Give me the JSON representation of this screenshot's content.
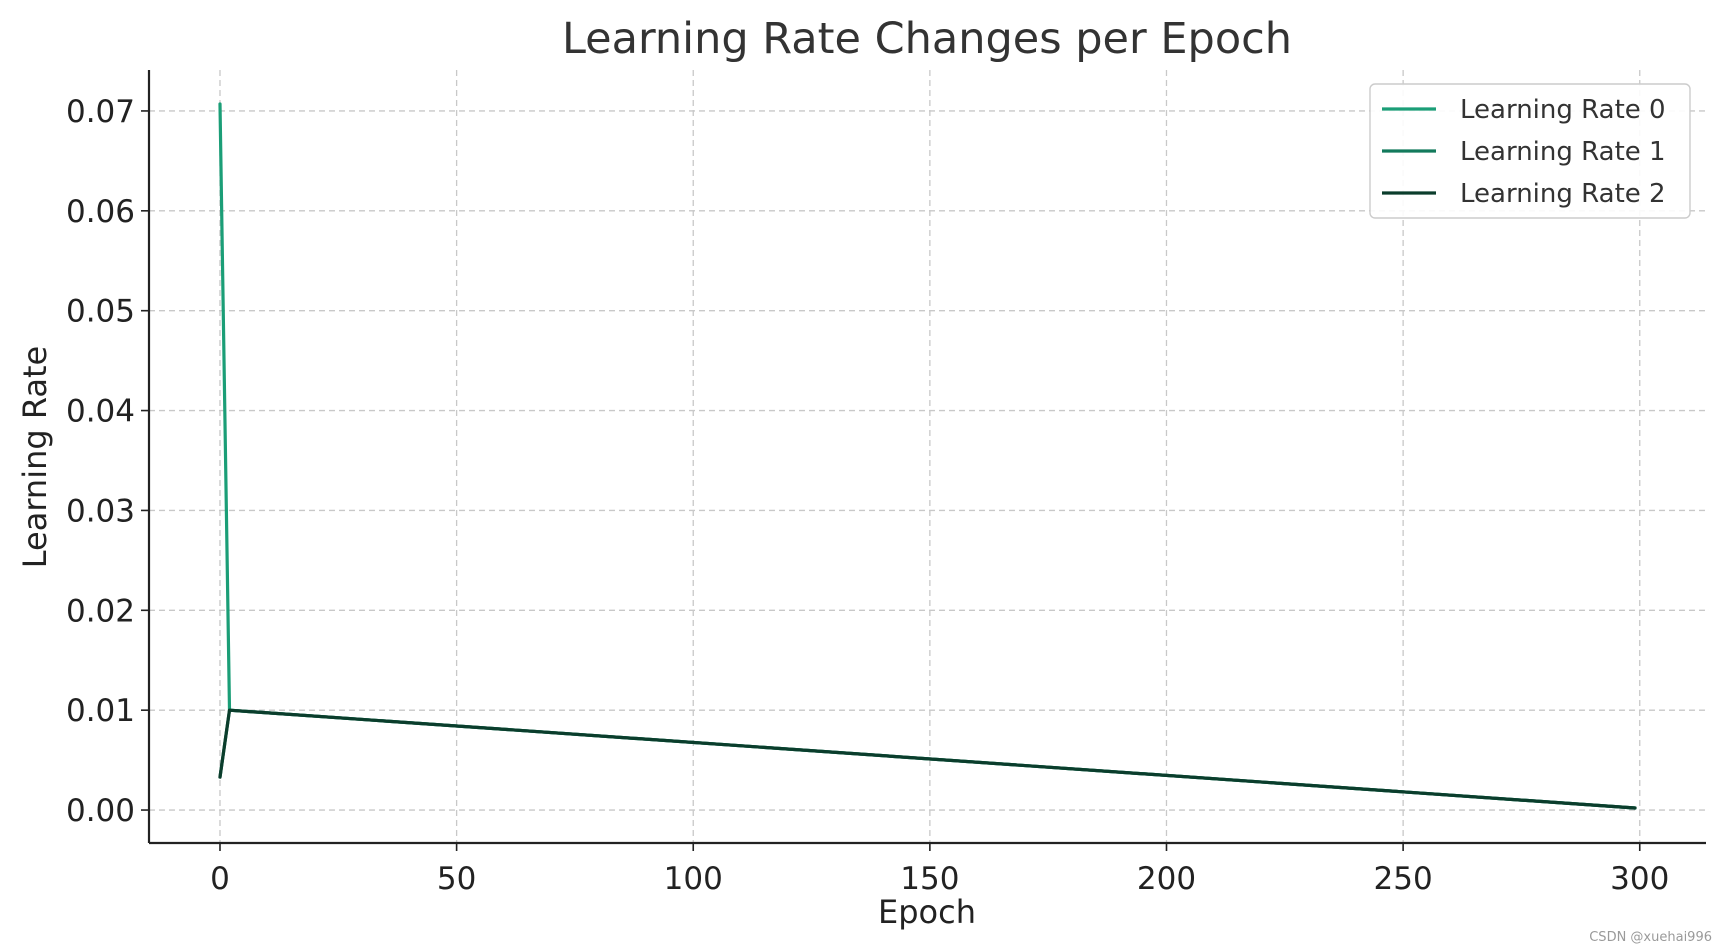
{
  "watermark": "CSDN @xuehai996",
  "chart_data": {
    "type": "line",
    "title": "Learning Rate Changes per Epoch",
    "xlabel": "Epoch",
    "ylabel": "Learning Rate",
    "xlim": [
      -15,
      314
    ],
    "ylim": [
      -0.0033,
      0.0741
    ],
    "xticks": [
      0,
      50,
      100,
      150,
      200,
      250,
      300
    ],
    "xtick_labels": [
      "0",
      "50",
      "100",
      "150",
      "200",
      "250",
      "300"
    ],
    "yticks": [
      0.0,
      0.01,
      0.02,
      0.03,
      0.04,
      0.05,
      0.06,
      0.07
    ],
    "ytick_labels": [
      "0.00",
      "0.01",
      "0.02",
      "0.03",
      "0.04",
      "0.05",
      "0.06",
      "0.07"
    ],
    "grid": true,
    "grid_style": "dashed",
    "legend_position": "top-right",
    "series": [
      {
        "name": "Learning Rate 0",
        "color": "#1b9e77",
        "x": [
          0,
          2,
          299
        ],
        "y": [
          0.0707,
          0.01,
          0.0002
        ]
      },
      {
        "name": "Learning Rate 1",
        "color": "#137a5c",
        "x": [
          0,
          2,
          299
        ],
        "y": [
          0.0033,
          0.01,
          0.0002
        ]
      },
      {
        "name": "Learning Rate 2",
        "color": "#0b3d2c",
        "x": [
          0,
          2,
          299
        ],
        "y": [
          0.0033,
          0.01,
          0.0002
        ]
      }
    ]
  }
}
